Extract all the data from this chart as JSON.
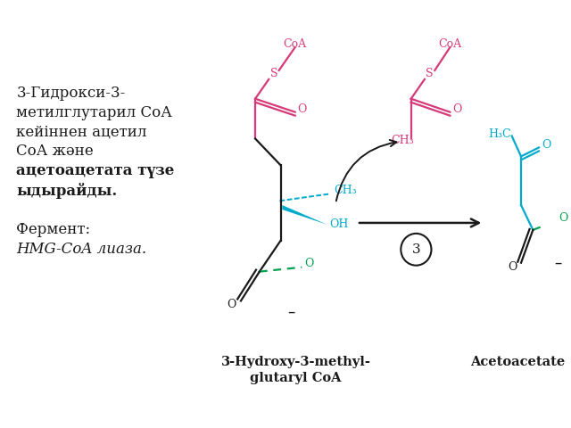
{
  "background_color": "#ffffff",
  "colors": {
    "pink": "#d63a7a",
    "cyan": "#00aacc",
    "green": "#00a050",
    "dark": "#1a1a1a",
    "black": "#000000"
  },
  "left_text": [
    {
      "text": "3-Гидрокси-3-",
      "bold": false,
      "italic": false
    },
    {
      "text": "метилглутарил СоА",
      "bold": false,
      "italic": false
    },
    {
      "text": "кейіннен ацетил",
      "bold": false,
      "italic": false
    },
    {
      "text": "СоА және",
      "bold": false,
      "italic": false
    },
    {
      "text": "ацетоацетата түзе",
      "bold": true,
      "italic": false
    },
    {
      "text": "ыдырайды.",
      "bold": true,
      "italic": false
    },
    {
      "text": "",
      "bold": false,
      "italic": false
    },
    {
      "text": "Фермент:",
      "bold": false,
      "italic": false
    },
    {
      "text": "HMG-CoA лиаза.",
      "bold": false,
      "italic": true
    }
  ],
  "label_hmg": "3-Hydroxy-3-methyl-\nglutaryl CoA",
  "label_aceto": "Acetoacetate"
}
